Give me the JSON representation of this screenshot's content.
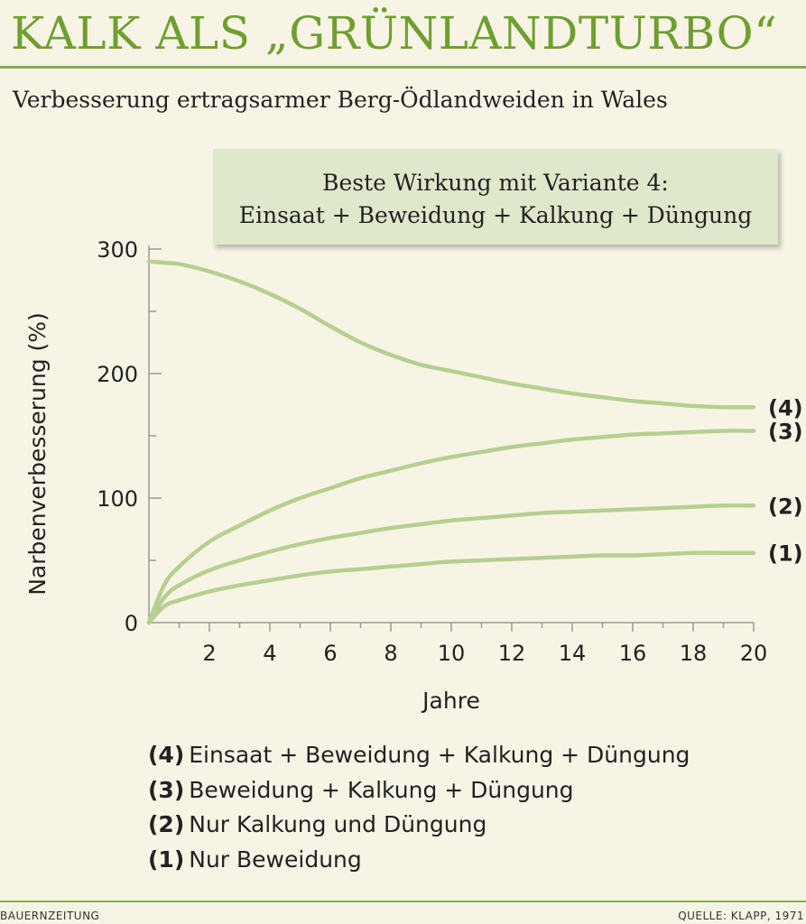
{
  "header": {
    "title": "KALK ALS „GRÜNLANDTURBO“",
    "subtitle": "Verbesserung ertragsarmer Berg-Ödlandweiden in Wales"
  },
  "callout": {
    "line1": "Beste Wirkung mit Variante 4:",
    "line2": "Einsaat + Beweidung + Kalkung + Düngung"
  },
  "colors": {
    "accent": "#86ad4a",
    "curve": "#b7cf8f",
    "axis": "#999999"
  },
  "chart_data": {
    "type": "line",
    "xlabel": "Jahre",
    "ylabel": "Narbenverbesserung (%)",
    "xlim": [
      0,
      20
    ],
    "ylim": [
      0,
      300
    ],
    "x_ticks": [
      2,
      4,
      6,
      8,
      10,
      12,
      14,
      16,
      18,
      20
    ],
    "y_ticks": [
      0,
      100,
      200,
      300
    ],
    "grid": false,
    "x": [
      0,
      0.5,
      1,
      2,
      3,
      4,
      5,
      6,
      7,
      8,
      9,
      10,
      11,
      12,
      13,
      14,
      15,
      16,
      17,
      18,
      19,
      20
    ],
    "series": [
      {
        "name": "(4)",
        "values": [
          290,
          289,
          288,
          282,
          274,
          264,
          252,
          238,
          225,
          215,
          207,
          202,
          197,
          192,
          188,
          184,
          181,
          178,
          176,
          174,
          173,
          173
        ]
      },
      {
        "name": "(3)",
        "values": [
          0,
          30,
          45,
          65,
          78,
          90,
          100,
          108,
          116,
          122,
          128,
          133,
          137,
          141,
          144,
          147,
          149,
          151,
          152,
          153,
          154,
          154
        ]
      },
      {
        "name": "(2)",
        "values": [
          0,
          20,
          30,
          42,
          50,
          57,
          63,
          68,
          72,
          76,
          79,
          82,
          84,
          86,
          88,
          89,
          90,
          91,
          92,
          93,
          94,
          94
        ]
      },
      {
        "name": "(1)",
        "values": [
          0,
          13,
          18,
          25,
          30,
          34,
          38,
          41,
          43,
          45,
          47,
          49,
          50,
          51,
          52,
          53,
          54,
          54,
          55,
          56,
          56,
          56
        ]
      }
    ]
  },
  "legend": [
    {
      "num": "(4)",
      "text": "Einsaat + Beweidung + Kalkung + Düngung"
    },
    {
      "num": "(3)",
      "text": "Beweidung + Kalkung + Düngung"
    },
    {
      "num": "(2)",
      "text": "Nur Kalkung und Düngung"
    },
    {
      "num": "(1)",
      "text": "Nur Beweidung"
    }
  ],
  "footer": {
    "left": "BAUERNZEITUNG",
    "right": "QUELLE: KLAPP, 1971"
  }
}
